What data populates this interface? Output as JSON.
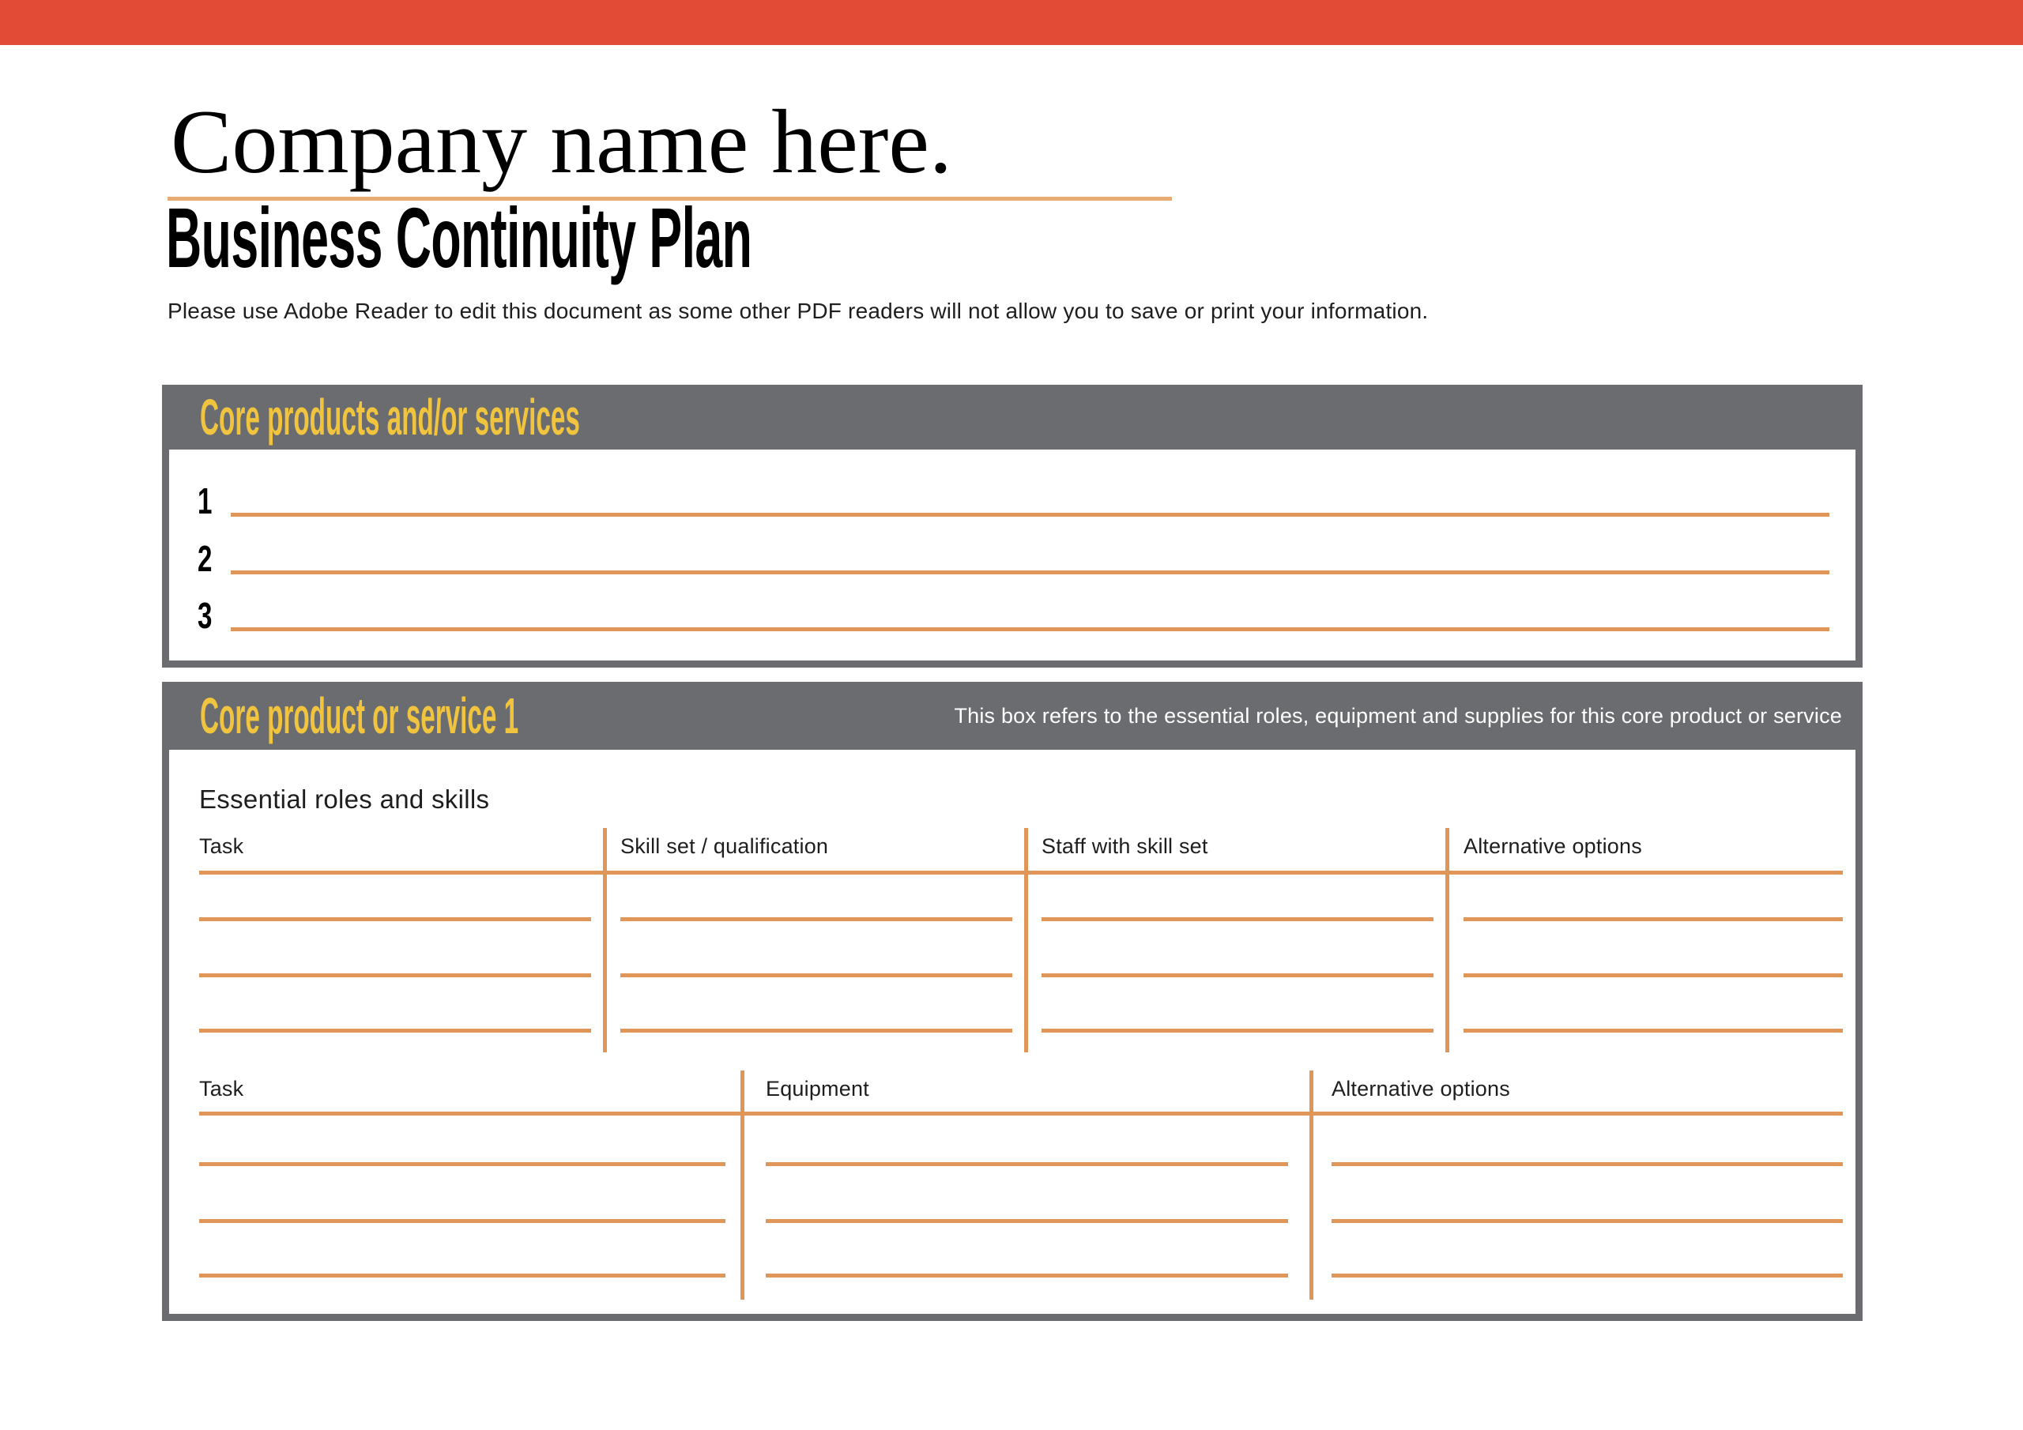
{
  "header": {
    "company_name": "Company name here.",
    "document_title": "Business Continuity Plan",
    "instruction": "Please use Adobe Reader to edit this document as some other PDF readers will not allow you to save or print your information."
  },
  "colors": {
    "accent_red": "#E24B36",
    "panel_gray": "#6B6C6F",
    "heading_yellow": "#F0C43E",
    "line_orange": "#E09659",
    "underline_orange": "#E9AB74"
  },
  "core_products": {
    "heading": "Core products and/or services",
    "numbers": [
      "1",
      "2",
      "3"
    ]
  },
  "core_product_1": {
    "heading": "Core product or service 1",
    "note": "This box refers to the essential roles, equipment and supplies for this core product or service",
    "subheading": "Essential roles and skills",
    "roles_table": {
      "columns": [
        "Task",
        "Skill set / qualification",
        "Staff with skill set",
        "Alternative options"
      ],
      "blank_rows_per_column": 3
    },
    "equipment_table": {
      "columns": [
        "Task",
        "Equipment",
        "Alternative options"
      ],
      "blank_rows_per_column": 3
    }
  }
}
